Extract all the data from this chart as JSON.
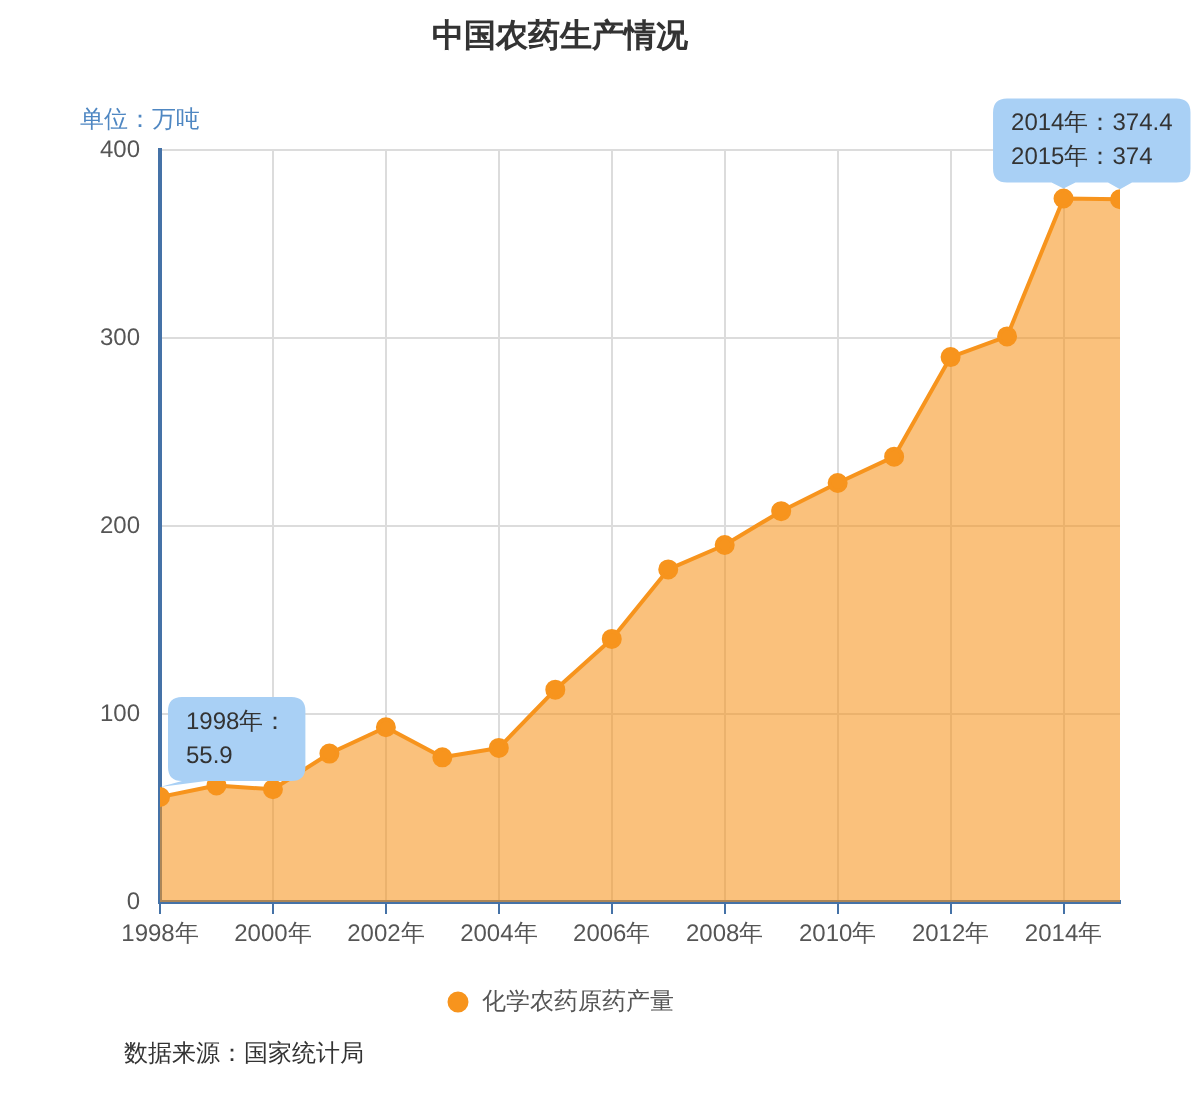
{
  "chart_data": {
    "type": "area",
    "title": "中国农药生产情况",
    "ylabel": "单位：万吨",
    "x": [
      1998,
      1999,
      2000,
      2001,
      2002,
      2003,
      2004,
      2005,
      2006,
      2007,
      2008,
      2009,
      2010,
      2011,
      2012,
      2013,
      2014,
      2015
    ],
    "series": [
      {
        "name": "化学农药原药产量",
        "color": "#f7941d",
        "values": [
          55.9,
          62,
          60,
          79,
          93,
          77,
          82,
          113,
          140,
          177,
          190,
          208,
          223,
          237,
          290,
          301,
          374.4,
          374
        ]
      }
    ],
    "xlim": [
      1998,
      2015
    ],
    "xticks": [
      {
        "value": 1998,
        "label": "1998年"
      },
      {
        "value": 2000,
        "label": "2000年"
      },
      {
        "value": 2002,
        "label": "2002年"
      },
      {
        "value": 2004,
        "label": "2004年"
      },
      {
        "value": 2006,
        "label": "2006年"
      },
      {
        "value": 2008,
        "label": "2008年"
      },
      {
        "value": 2010,
        "label": "2010年"
      },
      {
        "value": 2012,
        "label": "2012年"
      },
      {
        "value": 2014,
        "label": "2014年"
      }
    ],
    "ylim": [
      0,
      400
    ],
    "yticks": [
      0,
      100,
      200,
      300,
      400
    ],
    "grid": true,
    "legend": "bottom",
    "marker": "circle",
    "annotations": [
      {
        "text": "1998年：55.9",
        "x": 1998,
        "y": 55.9
      },
      {
        "text": "2014年：374.4",
        "x": 2014,
        "y": 374.4
      },
      {
        "text": "2015年：374",
        "x": 2015,
        "y": 374
      },
      "数据来源：国家统计局"
    ]
  }
}
